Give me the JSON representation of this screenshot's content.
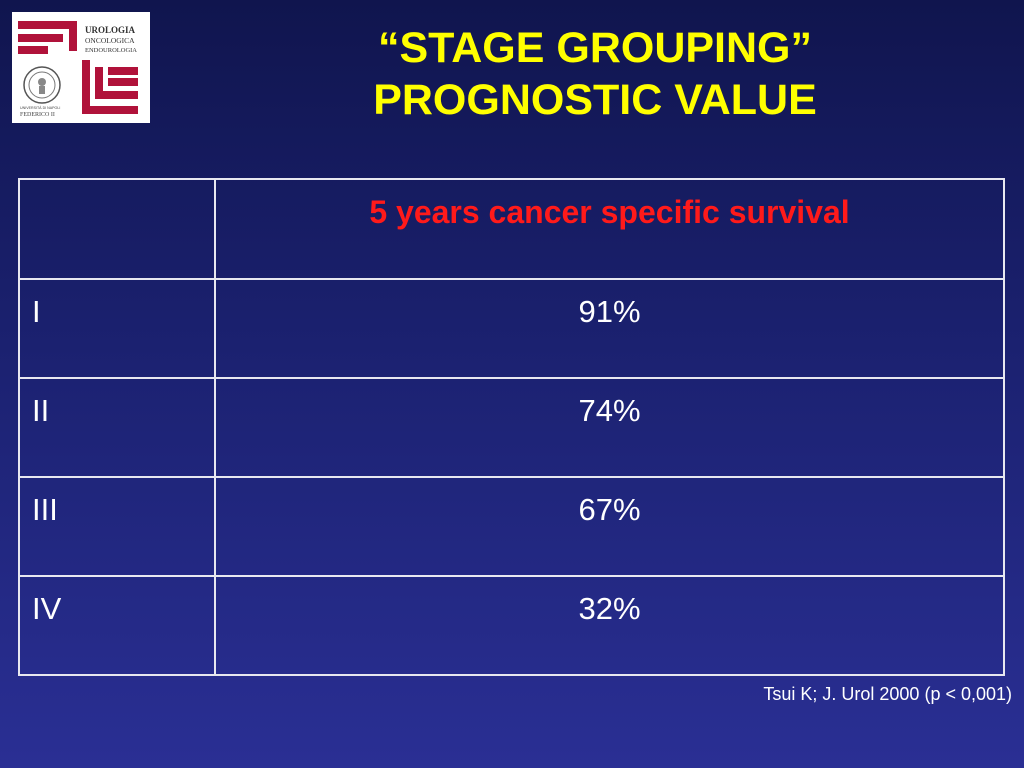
{
  "logo": {
    "line1": "UROLOGIA",
    "line2": "ONCOLOGICA",
    "line3": "ENDOUROLOGIA",
    "seal_text1": "UNIVERSITÀ DI NAPOLI",
    "seal_text2": "FEDERICO II",
    "brand_color": "#b0123a"
  },
  "title": {
    "line1": "“STAGE GROUPING”",
    "line2": "PROGNOSTIC VALUE",
    "color": "#ffff00"
  },
  "table": {
    "header": {
      "stage": "",
      "survival": "5 years cancer specific survival",
      "header_color": "#ff1a1a"
    },
    "rows": [
      {
        "stage": "I",
        "value": "91%"
      },
      {
        "stage": "II",
        "value": "74%"
      },
      {
        "stage": "III",
        "value": "67%"
      },
      {
        "stage": "IV",
        "value": "32%"
      }
    ]
  },
  "citation": "Tsui K; J. Urol 2000 (p < 0,001)"
}
